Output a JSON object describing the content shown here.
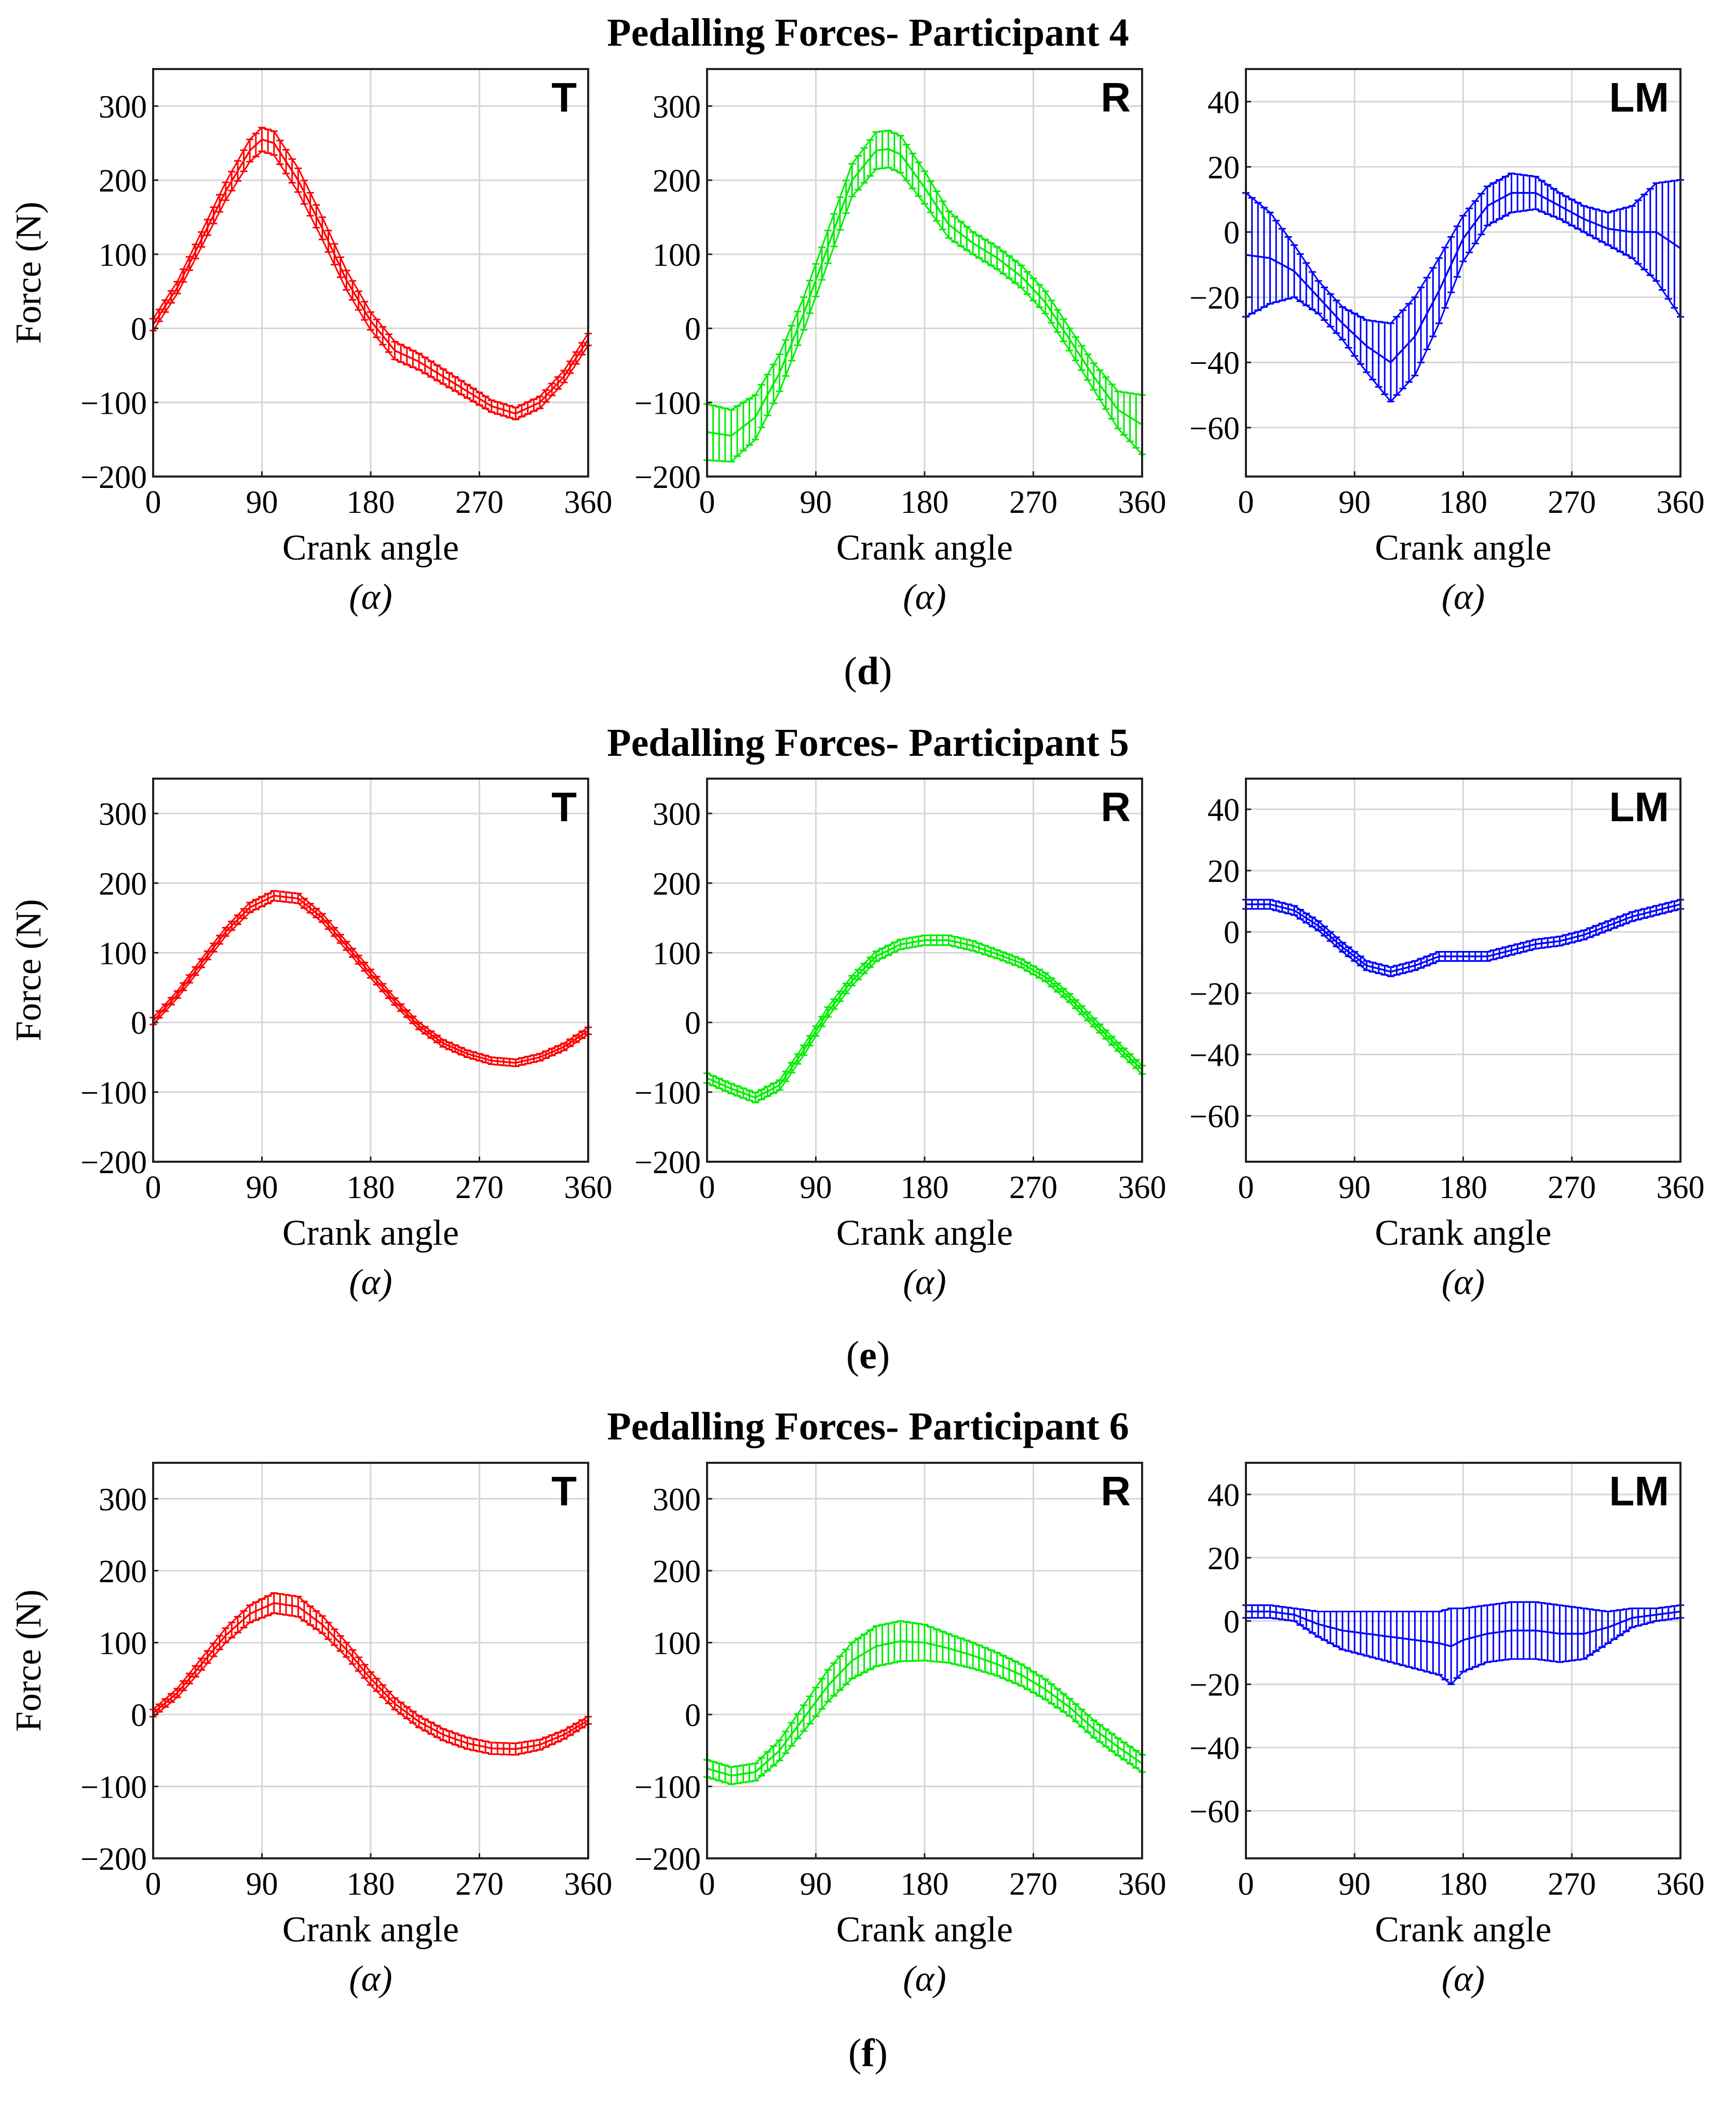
{
  "colors": {
    "T": "#ff0000",
    "R": "#00ee00",
    "LM": "#0000ff"
  },
  "chart_data": [
    {
      "type": "line",
      "figure": "d",
      "group_title": "Pedalling Forces- Participant 4",
      "sublabel_open": "(",
      "sublabel_letter": "d",
      "sublabel_close": ")",
      "panels": [
        {
          "label": "T",
          "color_key": "T",
          "xlabel": "Crank angle",
          "xunit": "(α)",
          "ylabel": "Force (N)",
          "xlim": [
            0,
            360
          ],
          "ylim": [
            -200,
            350
          ],
          "xticks": [
            0,
            90,
            180,
            270,
            360
          ],
          "xtick_labels": [
            "0",
            "90",
            "180",
            "270",
            "360"
          ],
          "yticks": [
            -200,
            -100,
            0,
            100,
            200,
            300
          ],
          "ytick_labels": [
            "−200",
            "−100",
            "0",
            "100",
            "200",
            "300"
          ],
          "x": [
            0,
            20,
            40,
            60,
            80,
            90,
            100,
            120,
            140,
            160,
            180,
            200,
            220,
            240,
            260,
            280,
            300,
            320,
            340,
            360
          ],
          "mean": [
            5,
            55,
            120,
            185,
            240,
            255,
            250,
            200,
            135,
            65,
            10,
            -30,
            -45,
            -65,
            -85,
            -105,
            -115,
            -100,
            -65,
            -15
          ],
          "sd": [
            8,
            8,
            10,
            12,
            15,
            16,
            16,
            16,
            15,
            13,
            12,
            12,
            11,
            10,
            9,
            8,
            8,
            8,
            8,
            8
          ]
        },
        {
          "label": "R",
          "color_key": "R",
          "xlabel": "Crank angle",
          "xunit": "(α)",
          "ylabel": "",
          "xlim": [
            0,
            360
          ],
          "ylim": [
            -200,
            350
          ],
          "xticks": [
            0,
            90,
            180,
            270,
            360
          ],
          "xtick_labels": [
            "0",
            "90",
            "180",
            "270",
            "360"
          ],
          "yticks": [
            -200,
            -100,
            0,
            100,
            200,
            300
          ],
          "ytick_labels": [
            "−200",
            "−100",
            "0",
            "100",
            "200",
            "300"
          ],
          "x": [
            0,
            20,
            40,
            60,
            80,
            100,
            120,
            140,
            150,
            160,
            180,
            200,
            220,
            240,
            260,
            280,
            300,
            320,
            340,
            360
          ],
          "mean": [
            -140,
            -145,
            -120,
            -60,
            20,
            110,
            200,
            240,
            242,
            235,
            190,
            140,
            115,
            95,
            70,
            35,
            -15,
            -65,
            -110,
            -130
          ],
          "sd": [
            38,
            35,
            30,
            25,
            22,
            22,
            22,
            25,
            25,
            25,
            22,
            18,
            15,
            15,
            15,
            15,
            15,
            18,
            25,
            40
          ]
        },
        {
          "label": "LM",
          "color_key": "LM",
          "xlabel": "Crank angle",
          "xunit": "(α)",
          "ylabel": "",
          "xlim": [
            0,
            360
          ],
          "ylim": [
            -75,
            50
          ],
          "xticks": [
            0,
            90,
            180,
            270,
            360
          ],
          "xtick_labels": [
            "0",
            "90",
            "180",
            "270",
            "360"
          ],
          "yticks": [
            -60,
            -40,
            -20,
            0,
            20,
            40
          ],
          "ytick_labels": [
            "−60",
            "−40",
            "−20",
            "0",
            "20",
            "40"
          ],
          "x": [
            0,
            20,
            40,
            60,
            80,
            100,
            120,
            140,
            160,
            180,
            200,
            220,
            240,
            260,
            280,
            300,
            320,
            340,
            360
          ],
          "mean": [
            -7,
            -8,
            -12,
            -20,
            -28,
            -35,
            -40,
            -32,
            -18,
            -2,
            8,
            12,
            12,
            8,
            4,
            1,
            0,
            0,
            -5
          ],
          "sd": [
            19,
            14,
            8,
            5,
            5,
            8,
            12,
            12,
            10,
            7,
            6,
            6,
            5,
            4,
            4,
            5,
            8,
            15,
            21
          ]
        }
      ]
    },
    {
      "type": "line",
      "figure": "e",
      "group_title": "Pedalling Forces- Participant 5",
      "sublabel_open": "(",
      "sublabel_letter": "e",
      "sublabel_close": ")",
      "panels": [
        {
          "label": "T",
          "color_key": "T",
          "xlabel": "Crank angle",
          "xunit": "(α)",
          "ylabel": "Force (N)",
          "xlim": [
            0,
            360
          ],
          "ylim": [
            -200,
            350
          ],
          "xticks": [
            0,
            90,
            180,
            270,
            360
          ],
          "xtick_labels": [
            "0",
            "90",
            "180",
            "270",
            "360"
          ],
          "yticks": [
            -200,
            -100,
            0,
            100,
            200,
            300
          ],
          "ytick_labels": [
            "−200",
            "−100",
            "0",
            "100",
            "200",
            "300"
          ],
          "x": [
            0,
            20,
            40,
            60,
            80,
            100,
            120,
            140,
            160,
            180,
            200,
            220,
            240,
            260,
            280,
            300,
            320,
            340,
            360
          ],
          "mean": [
            2,
            40,
            85,
            130,
            165,
            182,
            178,
            150,
            110,
            70,
            30,
            -5,
            -30,
            -45,
            -55,
            -58,
            -50,
            -35,
            -12
          ],
          "sd": [
            5,
            5,
            6,
            6,
            7,
            7,
            7,
            6,
            6,
            6,
            5,
            5,
            5,
            5,
            5,
            5,
            5,
            5,
            5
          ]
        },
        {
          "label": "R",
          "color_key": "R",
          "xlabel": "Crank angle",
          "xunit": "(α)",
          "ylabel": "",
          "xlim": [
            0,
            360
          ],
          "ylim": [
            -200,
            350
          ],
          "xticks": [
            0,
            90,
            180,
            270,
            360
          ],
          "xtick_labels": [
            "0",
            "90",
            "180",
            "270",
            "360"
          ],
          "yticks": [
            -200,
            -100,
            0,
            100,
            200,
            300
          ],
          "ytick_labels": [
            "−200",
            "−100",
            "0",
            "100",
            "200",
            "300"
          ],
          "x": [
            0,
            20,
            40,
            60,
            80,
            100,
            120,
            140,
            160,
            180,
            200,
            220,
            240,
            260,
            280,
            300,
            320,
            340,
            360
          ],
          "mean": [
            -80,
            -95,
            -108,
            -90,
            -40,
            15,
            60,
            95,
            112,
            118,
            118,
            110,
            98,
            85,
            65,
            35,
            0,
            -35,
            -68
          ],
          "sd": [
            7,
            7,
            7,
            7,
            7,
            7,
            7,
            7,
            7,
            7,
            7,
            7,
            6,
            6,
            6,
            6,
            6,
            6,
            6
          ]
        },
        {
          "label": "LM",
          "color_key": "LM",
          "xlabel": "Crank angle",
          "xunit": "(α)",
          "ylabel": "",
          "xlim": [
            0,
            360
          ],
          "ylim": [
            -75,
            50
          ],
          "xticks": [
            0,
            90,
            180,
            270,
            360
          ],
          "xtick_labels": [
            "0",
            "90",
            "180",
            "270",
            "360"
          ],
          "yticks": [
            -60,
            -40,
            -20,
            0,
            20,
            40
          ],
          "ytick_labels": [
            "−60",
            "−40",
            "−20",
            "0",
            "20",
            "40"
          ],
          "x": [
            0,
            20,
            40,
            60,
            80,
            100,
            120,
            140,
            160,
            180,
            200,
            220,
            240,
            260,
            280,
            300,
            320,
            340,
            360
          ],
          "mean": [
            9,
            9,
            7,
            2,
            -5,
            -11,
            -13,
            -11,
            -8,
            -8,
            -8,
            -6,
            -4,
            -3,
            -1,
            2,
            5,
            7,
            9
          ],
          "sd": [
            1.5,
            1.5,
            1.5,
            1.5,
            1.5,
            1.5,
            1.5,
            1.5,
            1.5,
            1.5,
            1.5,
            1.5,
            1.5,
            1.5,
            1.5,
            1.5,
            1.5,
            1.5,
            1.5
          ]
        }
      ]
    },
    {
      "type": "line",
      "figure": "f",
      "group_title": "Pedalling Forces- Participant 6",
      "sublabel_open": "(",
      "sublabel_letter": "f",
      "sublabel_close": ")",
      "panels": [
        {
          "label": "T",
          "color_key": "T",
          "xlabel": "Crank angle",
          "xunit": "(α)",
          "ylabel": "Force (N)",
          "xlim": [
            0,
            360
          ],
          "ylim": [
            -200,
            350
          ],
          "xticks": [
            0,
            90,
            180,
            270,
            360
          ],
          "xtick_labels": [
            "0",
            "90",
            "180",
            "270",
            "360"
          ],
          "yticks": [
            -200,
            -100,
            0,
            100,
            200,
            300
          ],
          "ytick_labels": [
            "−200",
            "−100",
            "0",
            "100",
            "200",
            "300"
          ],
          "x": [
            0,
            20,
            40,
            60,
            80,
            100,
            120,
            140,
            160,
            180,
            200,
            220,
            240,
            260,
            280,
            300,
            320,
            340,
            360
          ],
          "mean": [
            2,
            30,
            70,
            110,
            140,
            155,
            150,
            125,
            90,
            50,
            15,
            -10,
            -28,
            -40,
            -47,
            -48,
            -42,
            -28,
            -8
          ],
          "sd": [
            5,
            6,
            8,
            10,
            12,
            14,
            14,
            12,
            10,
            9,
            8,
            8,
            8,
            8,
            8,
            8,
            7,
            6,
            5
          ]
        },
        {
          "label": "R",
          "color_key": "R",
          "xlabel": "Crank angle",
          "xunit": "(α)",
          "ylabel": "",
          "xlim": [
            0,
            360
          ],
          "ylim": [
            -200,
            350
          ],
          "xticks": [
            0,
            90,
            180,
            270,
            360
          ],
          "xtick_labels": [
            "0",
            "90",
            "180",
            "270",
            "360"
          ],
          "yticks": [
            -200,
            -100,
            0,
            100,
            200,
            300
          ],
          "ytick_labels": [
            "−200",
            "−100",
            "0",
            "100",
            "200",
            "300"
          ],
          "x": [
            0,
            20,
            40,
            60,
            80,
            100,
            120,
            140,
            160,
            180,
            200,
            220,
            240,
            260,
            280,
            300,
            320,
            340,
            360
          ],
          "mean": [
            -75,
            -85,
            -80,
            -50,
            -5,
            40,
            75,
            95,
            102,
            100,
            92,
            82,
            70,
            55,
            35,
            10,
            -20,
            -45,
            -68
          ],
          "sd": [
            12,
            12,
            12,
            14,
            18,
            22,
            25,
            28,
            28,
            25,
            20,
            18,
            16,
            15,
            14,
            12,
            12,
            12,
            12
          ]
        },
        {
          "label": "LM",
          "color_key": "LM",
          "xlabel": "Crank angle",
          "xunit": "(α)",
          "ylabel": "",
          "xlim": [
            0,
            360
          ],
          "ylim": [
            -75,
            50
          ],
          "xticks": [
            0,
            90,
            180,
            270,
            360
          ],
          "xtick_labels": [
            "0",
            "90",
            "180",
            "270",
            "360"
          ],
          "yticks": [
            -60,
            -40,
            -20,
            0,
            20,
            40
          ],
          "ytick_labels": [
            "−60",
            "−40",
            "−20",
            "0",
            "20",
            "40"
          ],
          "x": [
            0,
            20,
            40,
            60,
            80,
            100,
            120,
            140,
            160,
            170,
            180,
            200,
            220,
            240,
            260,
            280,
            300,
            320,
            340,
            360
          ],
          "mean": [
            3,
            3,
            2,
            -1,
            -3,
            -4,
            -5,
            -6,
            -7,
            -8,
            -6,
            -4,
            -3,
            -3,
            -4,
            -4,
            -2,
            1,
            2,
            3
          ],
          "sd": [
            2,
            2,
            2,
            4,
            6,
            7,
            8,
            9,
            10,
            12,
            10,
            9,
            9,
            9,
            9,
            8,
            5,
            3,
            2,
            2
          ]
        }
      ]
    }
  ]
}
